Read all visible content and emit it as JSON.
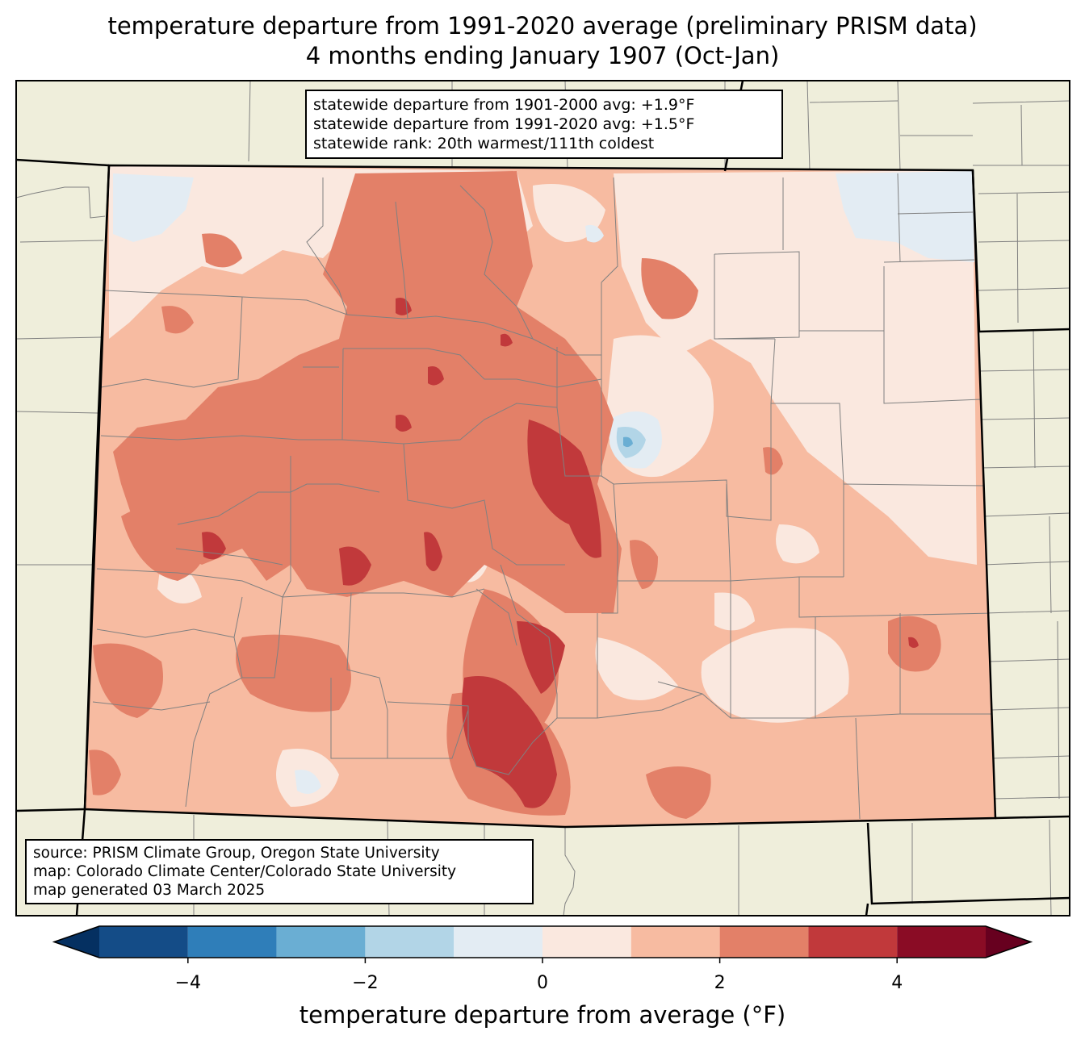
{
  "title": {
    "line1": "temperature departure from 1991-2020 average (preliminary PRISM data)",
    "line2": "4 months ending January 1907 (Oct-Jan)"
  },
  "stats_box": {
    "line1": "statewide departure from 1901-2000 avg: +1.9°F",
    "line2": "statewide departure from 1991-2020 avg: +1.5°F",
    "line3": "statewide rank: 20th warmest/111th coldest"
  },
  "credits_box": {
    "line1": "source: PRISM Climate Group, Oregon State University",
    "line2": "map: Colorado Climate Center/Colorado State University",
    "line3": "map generated 03 March 2025"
  },
  "colorbar": {
    "label": "temperature departure from average (°F)",
    "range": [
      -5,
      5
    ],
    "ticks": [
      {
        "value": -4,
        "label": "−4"
      },
      {
        "value": -2,
        "label": "−2"
      },
      {
        "value": 0,
        "label": "0"
      },
      {
        "value": 2,
        "label": "2"
      },
      {
        "value": 4,
        "label": "4"
      }
    ],
    "bins": [
      {
        "from": -5,
        "to": -4,
        "color": "#144c87"
      },
      {
        "from": -4,
        "to": -3,
        "color": "#2f7eb9"
      },
      {
        "from": -3,
        "to": -2,
        "color": "#6aaed3"
      },
      {
        "from": -2,
        "to": -1,
        "color": "#b2d5e7"
      },
      {
        "from": -1,
        "to": 0,
        "color": "#e3ecf3"
      },
      {
        "from": 0,
        "to": 1,
        "color": "#fae8df"
      },
      {
        "from": 1,
        "to": 2,
        "color": "#f7bba1"
      },
      {
        "from": 2,
        "to": 3,
        "color": "#e38068"
      },
      {
        "from": 3,
        "to": 4,
        "color": "#c1393b"
      },
      {
        "from": 4,
        "to": 5,
        "color": "#8a0c25"
      }
    ],
    "under_color": "#053061",
    "over_color": "#67001f"
  },
  "colors": {
    "land_background": "#efeedb",
    "county_lines": "#808080",
    "state_lines": "#000000"
  }
}
